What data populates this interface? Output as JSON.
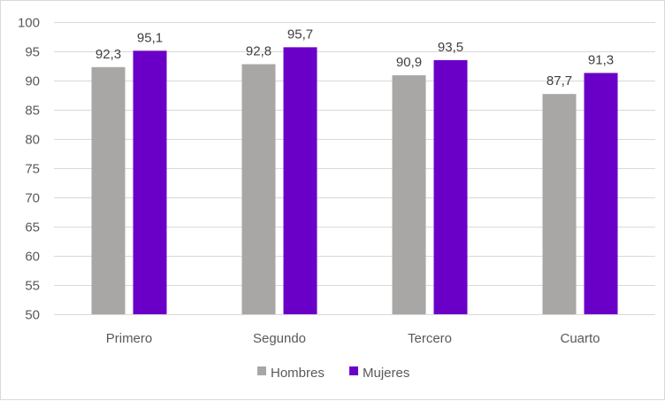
{
  "chart_data": {
    "type": "bar",
    "categories": [
      "Primero",
      "Segundo",
      "Tercero",
      "Cuarto"
    ],
    "series": [
      {
        "name": "Hombres",
        "color": "#a9a7a6",
        "values": [
          92.3,
          92.8,
          90.9,
          87.7
        ],
        "labels": [
          "92,3",
          "92,8",
          "90,9",
          "87,7"
        ]
      },
      {
        "name": "Mujeres",
        "color": "#6a00c8",
        "values": [
          95.1,
          95.7,
          93.5,
          91.3
        ],
        "labels": [
          "95,1",
          "95,7",
          "93,5",
          "91,3"
        ]
      }
    ],
    "ylim": [
      50,
      100
    ],
    "yticks": [
      "50",
      "55",
      "60",
      "65",
      "70",
      "75",
      "80",
      "85",
      "90",
      "95",
      "100"
    ],
    "grid": true,
    "legend": "bottom",
    "gridColor": "#d9d9d9"
  }
}
